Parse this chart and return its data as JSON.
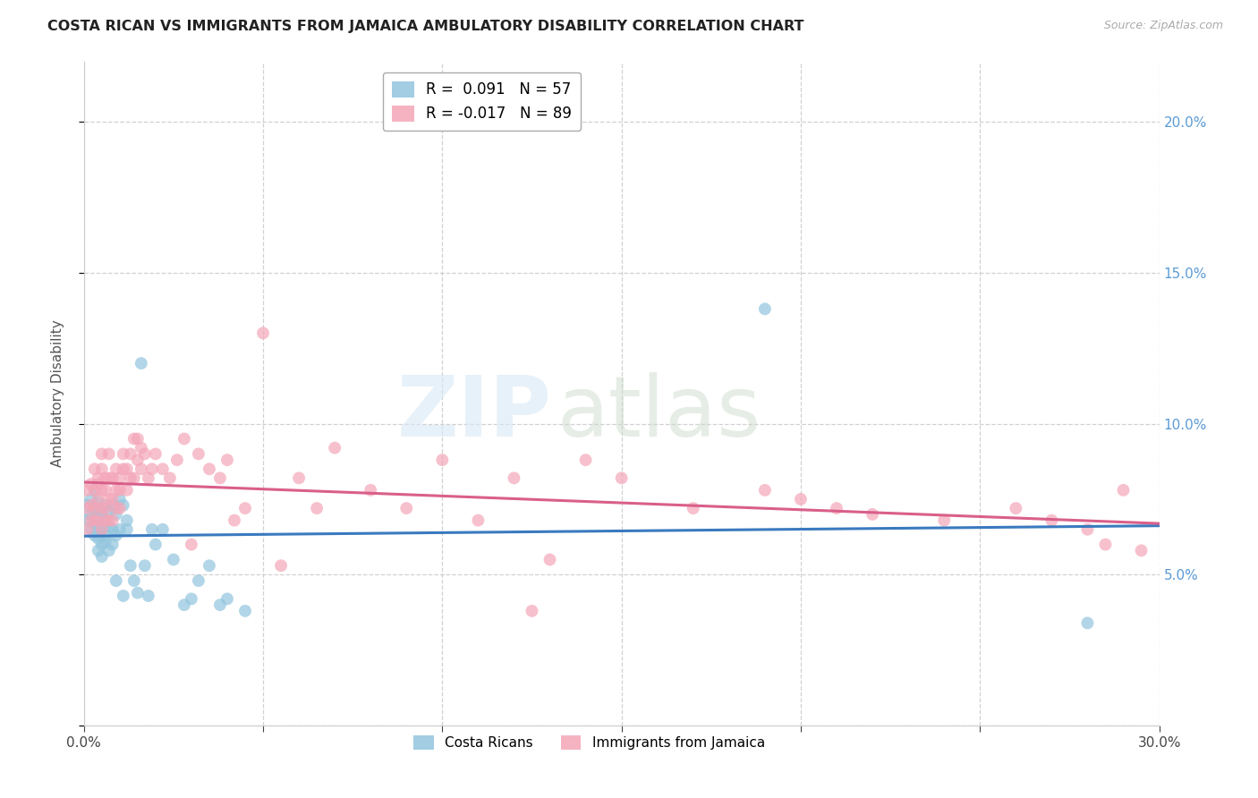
{
  "title": "COSTA RICAN VS IMMIGRANTS FROM JAMAICA AMBULATORY DISABILITY CORRELATION CHART",
  "source": "Source: ZipAtlas.com",
  "xlim": [
    0.0,
    0.3
  ],
  "ylim": [
    0.0,
    0.22
  ],
  "blue_R": " 0.091",
  "blue_N": "57",
  "pink_R": "-0.017",
  "pink_N": "89",
  "blue_color": "#92c5de",
  "pink_color": "#f4a6b8",
  "blue_line_color": "#3a7abf",
  "pink_line_color": "#d95f8a",
  "legend_label_blue": "Costa Ricans",
  "legend_label_pink": "Immigrants from Jamaica",
  "ylabel": "Ambulatory Disability",
  "watermark_zip": "ZIP",
  "watermark_atlas": "atlas",
  "blue_x": [
    0.001,
    0.001,
    0.002,
    0.002,
    0.002,
    0.003,
    0.003,
    0.003,
    0.003,
    0.003,
    0.004,
    0.004,
    0.004,
    0.004,
    0.005,
    0.005,
    0.005,
    0.005,
    0.005,
    0.006,
    0.006,
    0.006,
    0.006,
    0.007,
    0.007,
    0.007,
    0.008,
    0.008,
    0.008,
    0.009,
    0.009,
    0.009,
    0.01,
    0.01,
    0.011,
    0.011,
    0.012,
    0.012,
    0.013,
    0.014,
    0.015,
    0.016,
    0.017,
    0.018,
    0.019,
    0.02,
    0.022,
    0.025,
    0.028,
    0.03,
    0.032,
    0.035,
    0.038,
    0.04,
    0.045,
    0.19,
    0.28
  ],
  "blue_y": [
    0.073,
    0.068,
    0.075,
    0.065,
    0.07,
    0.072,
    0.067,
    0.063,
    0.078,
    0.071,
    0.069,
    0.074,
    0.062,
    0.058,
    0.065,
    0.07,
    0.056,
    0.06,
    0.066,
    0.063,
    0.068,
    0.073,
    0.061,
    0.066,
    0.071,
    0.058,
    0.065,
    0.073,
    0.06,
    0.063,
    0.07,
    0.048,
    0.075,
    0.065,
    0.073,
    0.043,
    0.068,
    0.065,
    0.053,
    0.048,
    0.044,
    0.12,
    0.053,
    0.043,
    0.065,
    0.06,
    0.065,
    0.055,
    0.04,
    0.042,
    0.048,
    0.053,
    0.04,
    0.042,
    0.038,
    0.138,
    0.034
  ],
  "pink_x": [
    0.001,
    0.001,
    0.001,
    0.002,
    0.002,
    0.002,
    0.003,
    0.003,
    0.003,
    0.003,
    0.004,
    0.004,
    0.004,
    0.004,
    0.005,
    0.005,
    0.005,
    0.005,
    0.005,
    0.006,
    0.006,
    0.006,
    0.006,
    0.007,
    0.007,
    0.007,
    0.007,
    0.008,
    0.008,
    0.008,
    0.009,
    0.009,
    0.009,
    0.01,
    0.01,
    0.01,
    0.011,
    0.011,
    0.012,
    0.012,
    0.013,
    0.013,
    0.014,
    0.014,
    0.015,
    0.015,
    0.016,
    0.016,
    0.017,
    0.018,
    0.019,
    0.02,
    0.022,
    0.024,
    0.026,
    0.028,
    0.032,
    0.035,
    0.038,
    0.04,
    0.05,
    0.06,
    0.065,
    0.09,
    0.1,
    0.12,
    0.14,
    0.15,
    0.17,
    0.19,
    0.2,
    0.21,
    0.22,
    0.24,
    0.26,
    0.27,
    0.28,
    0.29,
    0.285,
    0.295,
    0.13,
    0.125,
    0.11,
    0.08,
    0.07,
    0.055,
    0.045,
    0.042,
    0.03
  ],
  "pink_y": [
    0.078,
    0.072,
    0.065,
    0.08,
    0.073,
    0.068,
    0.085,
    0.078,
    0.072,
    0.068,
    0.082,
    0.075,
    0.068,
    0.08,
    0.085,
    0.078,
    0.072,
    0.065,
    0.09,
    0.082,
    0.078,
    0.072,
    0.068,
    0.082,
    0.075,
    0.068,
    0.09,
    0.082,
    0.075,
    0.068,
    0.085,
    0.078,
    0.072,
    0.082,
    0.078,
    0.072,
    0.09,
    0.085,
    0.085,
    0.078,
    0.082,
    0.09,
    0.082,
    0.095,
    0.095,
    0.088,
    0.085,
    0.092,
    0.09,
    0.082,
    0.085,
    0.09,
    0.085,
    0.082,
    0.088,
    0.095,
    0.09,
    0.085,
    0.082,
    0.088,
    0.13,
    0.082,
    0.072,
    0.072,
    0.088,
    0.082,
    0.088,
    0.082,
    0.072,
    0.078,
    0.075,
    0.072,
    0.07,
    0.068,
    0.072,
    0.068,
    0.065,
    0.078,
    0.06,
    0.058,
    0.055,
    0.038,
    0.068,
    0.078,
    0.092,
    0.053,
    0.072,
    0.068,
    0.06
  ]
}
